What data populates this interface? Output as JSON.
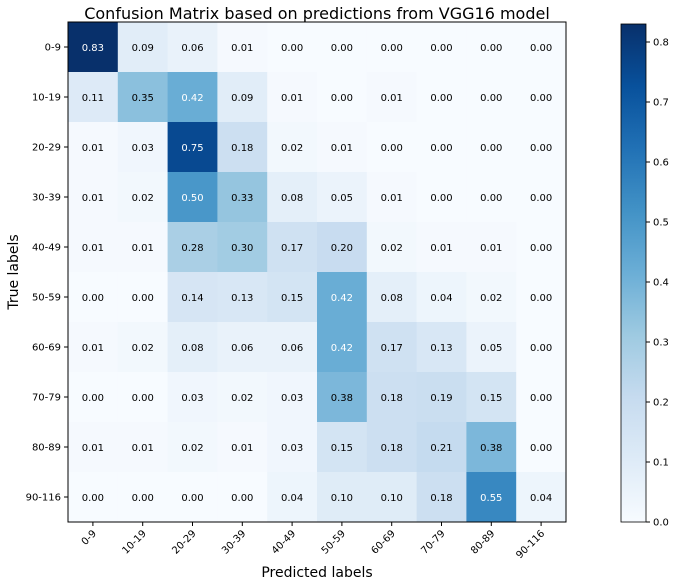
{
  "chart_data": {
    "type": "heatmap",
    "title": "Confusion Matrix based on predictions from VGG16 model",
    "xlabel": "Predicted labels",
    "ylabel": "True labels",
    "x_categories": [
      "0-9",
      "10-19",
      "20-29",
      "30-39",
      "40-49",
      "50-59",
      "60-69",
      "70-79",
      "80-89",
      "90-116"
    ],
    "y_categories": [
      "0-9",
      "10-19",
      "20-29",
      "30-39",
      "40-49",
      "50-59",
      "60-69",
      "70-79",
      "80-89",
      "90-116"
    ],
    "values": [
      [
        0.83,
        0.09,
        0.06,
        0.01,
        0.0,
        0.0,
        0.0,
        0.0,
        0.0,
        0.0
      ],
      [
        0.11,
        0.35,
        0.42,
        0.09,
        0.01,
        0.0,
        0.01,
        0.0,
        0.0,
        0.0
      ],
      [
        0.01,
        0.03,
        0.75,
        0.18,
        0.02,
        0.01,
        0.0,
        0.0,
        0.0,
        0.0
      ],
      [
        0.01,
        0.02,
        0.5,
        0.33,
        0.08,
        0.05,
        0.01,
        0.0,
        0.0,
        0.0
      ],
      [
        0.01,
        0.01,
        0.28,
        0.3,
        0.17,
        0.2,
        0.02,
        0.01,
        0.01,
        0.0
      ],
      [
        0.0,
        0.0,
        0.14,
        0.13,
        0.15,
        0.42,
        0.08,
        0.04,
        0.02,
        0.0
      ],
      [
        0.01,
        0.02,
        0.08,
        0.06,
        0.06,
        0.42,
        0.17,
        0.13,
        0.05,
        0.0
      ],
      [
        0.0,
        0.0,
        0.03,
        0.02,
        0.03,
        0.38,
        0.18,
        0.19,
        0.15,
        0.0
      ],
      [
        0.01,
        0.01,
        0.02,
        0.01,
        0.03,
        0.15,
        0.18,
        0.21,
        0.38,
        0.0
      ],
      [
        0.0,
        0.0,
        0.0,
        0.0,
        0.04,
        0.1,
        0.1,
        0.18,
        0.55,
        0.04
      ]
    ],
    "colormap": "Blues",
    "colorbar": {
      "range": [
        0,
        0.83
      ],
      "ticks": [
        0.0,
        0.1,
        0.2,
        0.3,
        0.4,
        0.5,
        0.6,
        0.7,
        0.8
      ],
      "tick_labels": [
        "0.0",
        "0.1",
        "0.2",
        "0.3",
        "0.4",
        "0.5",
        "0.6",
        "0.7",
        "0.8"
      ]
    },
    "grid": false
  }
}
